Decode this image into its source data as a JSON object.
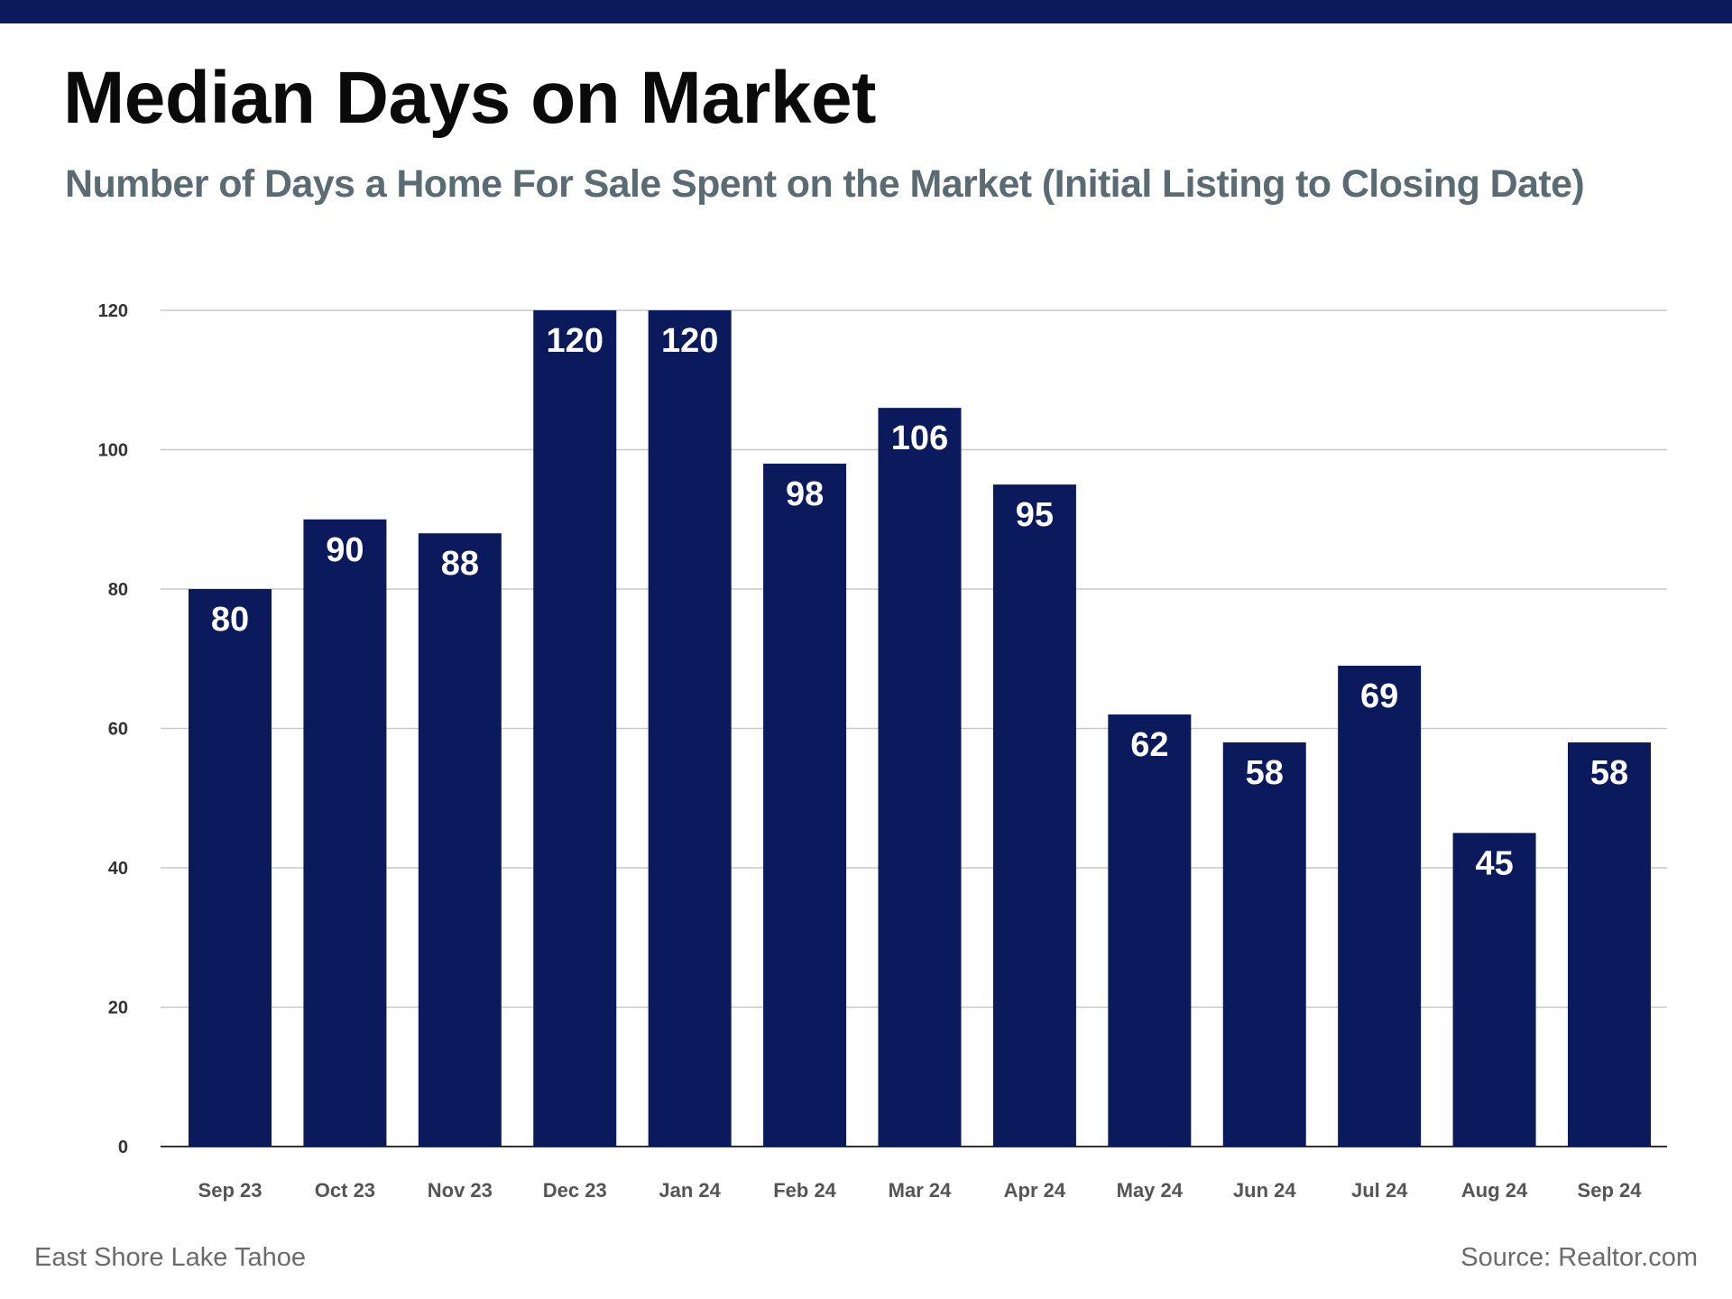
{
  "header": {
    "title": "Median Days on Market",
    "subtitle": "Number of Days a Home For Sale Spent on the Market (Initial Listing to Closing Date)"
  },
  "footer": {
    "left": "East Shore Lake Tahoe",
    "right": "Source: Realtor.com"
  },
  "colors": {
    "bar": "#0b1a5c",
    "top_bar": "#0b1a5c",
    "subtitle": "#5a6b72",
    "grid": "#c8c8c8",
    "axis": "#333333",
    "tick_label": "#555555",
    "data_label": "#ffffff"
  },
  "chart_data": {
    "type": "bar",
    "title": "Median Days on Market",
    "subtitle": "Number of Days a Home For Sale Spent on the Market (Initial Listing to Closing Date)",
    "xlabel": "",
    "ylabel": "",
    "categories": [
      "Sep 23",
      "Oct 23",
      "Nov 23",
      "Dec 23",
      "Jan 24",
      "Feb 24",
      "Mar 24",
      "Apr 24",
      "May 24",
      "Jun 24",
      "Jul 24",
      "Aug 24",
      "Sep 24"
    ],
    "values": [
      80,
      90,
      88,
      120,
      120,
      98,
      106,
      95,
      62,
      58,
      69,
      45,
      58
    ],
    "ylim": [
      0,
      120
    ],
    "yticks": [
      0,
      20,
      40,
      60,
      80,
      100,
      120
    ],
    "grid": true,
    "legend": "none",
    "data_labels": "inside-top"
  }
}
